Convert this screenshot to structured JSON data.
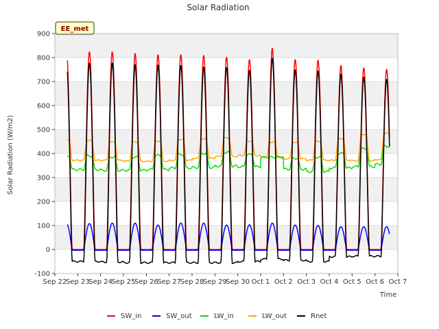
{
  "chart_data": {
    "type": "line",
    "title": "Solar Radiation",
    "site_label": "EE_met",
    "xlabel": "Time",
    "ylabel": "Solar Radiation (W/m2)",
    "ylim": [
      -100,
      900
    ],
    "yticks": [
      -100,
      0,
      100,
      200,
      300,
      400,
      500,
      600,
      700,
      800,
      900
    ],
    "xlim": [
      0,
      15
    ],
    "xtick_labels": [
      "Sep 22",
      "Sep 23",
      "Sep 24",
      "Sep 25",
      "Sep 26",
      "Sep 27",
      "Sep 28",
      "Sep 29",
      "Sep 30",
      "Oct 1",
      "Oct 2",
      "Oct 3",
      "Oct 4",
      "Oct 5",
      "Oct 6",
      "Oct 7"
    ],
    "x_unit": "days since Sep 22 00:00",
    "grid": "horizontal bands",
    "legend_position": "bottom",
    "daily_peaks": {
      "days": [
        "Sep 23",
        "Sep 24",
        "Sep 25",
        "Sep 26",
        "Sep 27",
        "Sep 28",
        "Sep 29",
        "Sep 30",
        "Oct 1",
        "Oct 2",
        "Oct 3",
        "Oct 4",
        "Oct 5",
        "Oct 6"
      ],
      "SW_in": [
        825,
        825,
        818,
        813,
        813,
        810,
        803,
        793,
        840,
        793,
        790,
        768,
        758,
        752
      ],
      "SW_out": [
        108,
        110,
        110,
        102,
        110,
        110,
        102,
        103,
        110,
        102,
        100,
        95,
        95,
        95
      ],
      "LW_in_day": [
        390,
        385,
        385,
        392,
        395,
        400,
        405,
        395,
        385,
        380,
        385,
        400,
        420,
        430
      ],
      "LW_in_night": [
        333,
        330,
        330,
        333,
        340,
        342,
        348,
        345,
        385,
        335,
        325,
        340,
        345,
        355
      ],
      "LW_out_day": [
        455,
        448,
        448,
        452,
        458,
        460,
        465,
        452,
        448,
        445,
        450,
        462,
        480,
        485
      ],
      "LW_out_night": [
        372,
        372,
        368,
        368,
        372,
        380,
        388,
        392,
        385,
        378,
        372,
        372,
        370,
        375
      ],
      "Rnet": [
        778,
        778,
        772,
        770,
        768,
        762,
        760,
        748,
        798,
        750,
        745,
        732,
        720,
        710
      ],
      "Rnet_night": [
        -50,
        -52,
        -55,
        -55,
        -55,
        -55,
        -55,
        -50,
        -40,
        -45,
        -50,
        -30,
        -28,
        -28
      ]
    },
    "series": [
      {
        "name": "SW_in",
        "color": "#ff0000"
      },
      {
        "name": "SW_out",
        "color": "#0000ff"
      },
      {
        "name": "LW_in",
        "color": "#00e000"
      },
      {
        "name": "LW_out",
        "color": "#ffa500"
      },
      {
        "name": "Rnet",
        "color": "#000000"
      }
    ]
  }
}
